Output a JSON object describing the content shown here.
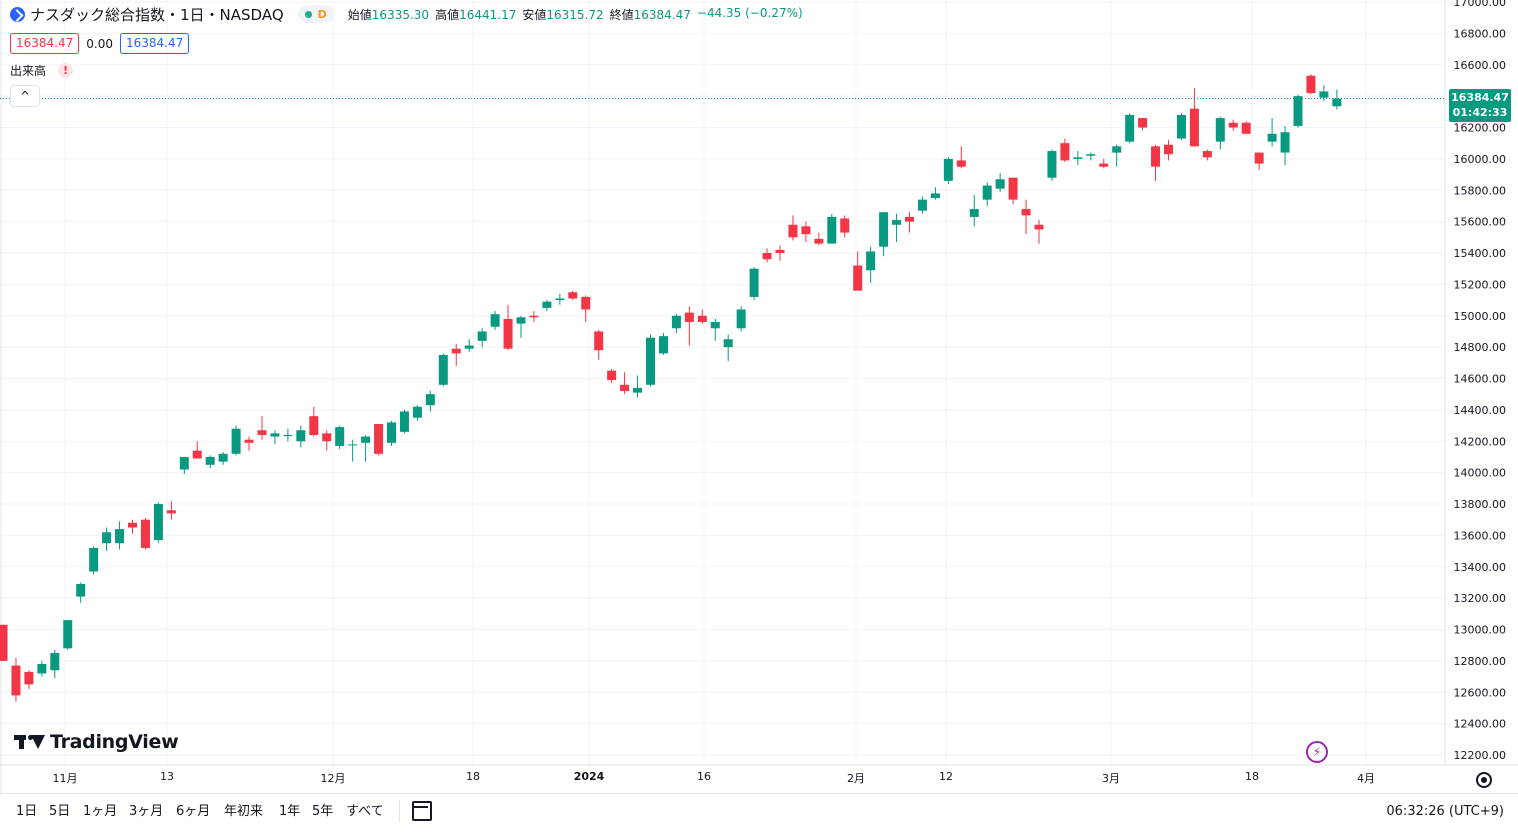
{
  "header": {
    "title": "ナスダック総合指数・1日・NASDAQ",
    "badge": "D",
    "ohlc": {
      "open_label": "始値",
      "open": "16335.30",
      "high_label": "高値",
      "high": "16441.17",
      "low_label": "安値",
      "low": "16315.72",
      "close_label": "終値",
      "close": "16384.47",
      "change": "−44.35 (−0.27%)"
    },
    "bid": "16384.47",
    "spread": "0.00",
    "ask": "16384.47",
    "volume_label": "出来高",
    "volume_warning": "!",
    "collapse": "^"
  },
  "brand": {
    "name": "TradingView"
  },
  "last_price": {
    "value": "16384.47",
    "countdown": "01:42:33"
  },
  "timeframes": [
    "1日",
    "5日",
    "1ヶ月",
    "3ヶ月",
    "6ヶ月",
    "年初来",
    "1年",
    "5年",
    "すべて"
  ],
  "clock": "06:32:26 (UTC+9)",
  "colors": {
    "up": "#089981",
    "down": "#f23645",
    "grid": "#f0f3fa",
    "accent": "#2962ff"
  },
  "icons": {
    "lightning": "⚡",
    "settings": "gear-icon",
    "calendar": "calendar-icon"
  },
  "chart_data": {
    "type": "candlestick",
    "title": "ナスダック総合指数・1日・NASDAQ",
    "y_ticks": [
      "17000.00",
      "16800.00",
      "16600.00",
      "16400.00",
      "16200.00",
      "16000.00",
      "15800.00",
      "15600.00",
      "15400.00",
      "15200.00",
      "15000.00",
      "14800.00",
      "14600.00",
      "14400.00",
      "14200.00",
      "14000.00",
      "13800.00",
      "13600.00",
      "13400.00",
      "13200.00",
      "13000.00",
      "12800.00",
      "12600.00",
      "12400.00",
      "12200.00"
    ],
    "ylim": [
      12100,
      17020
    ],
    "x_ticks": [
      "11月",
      "13",
      "12月",
      "18",
      "2024",
      "16",
      "2月",
      "12",
      "3月",
      "18",
      "4月"
    ],
    "x_tick_bold": "2024",
    "candles": [
      {
        "o": 13030,
        "h": 13030,
        "l": 12800,
        "c": 12800
      },
      {
        "o": 12770,
        "h": 12820,
        "l": 12540,
        "c": 12580
      },
      {
        "o": 12730,
        "h": 12740,
        "l": 12620,
        "c": 12650
      },
      {
        "o": 12720,
        "h": 12800,
        "l": 12700,
        "c": 12780
      },
      {
        "o": 12740,
        "h": 12870,
        "l": 12690,
        "c": 12850
      },
      {
        "o": 12880,
        "h": 13060,
        "l": 12870,
        "c": 13060
      },
      {
        "o": 13210,
        "h": 13300,
        "l": 13170,
        "c": 13290
      },
      {
        "o": 13370,
        "h": 13530,
        "l": 13350,
        "c": 13520
      },
      {
        "o": 13550,
        "h": 13650,
        "l": 13500,
        "c": 13620
      },
      {
        "o": 13550,
        "h": 13690,
        "l": 13510,
        "c": 13640
      },
      {
        "o": 13680,
        "h": 13700,
        "l": 13610,
        "c": 13650
      },
      {
        "o": 13700,
        "h": 13710,
        "l": 13510,
        "c": 13520
      },
      {
        "o": 13570,
        "h": 13810,
        "l": 13550,
        "c": 13800
      },
      {
        "o": 13760,
        "h": 13820,
        "l": 13700,
        "c": 13740
      },
      {
        "o": 14020,
        "h": 14100,
        "l": 13990,
        "c": 14100
      },
      {
        "o": 14140,
        "h": 14200,
        "l": 14090,
        "c": 14090
      },
      {
        "o": 14050,
        "h": 14110,
        "l": 14030,
        "c": 14100
      },
      {
        "o": 14070,
        "h": 14130,
        "l": 14050,
        "c": 14120
      },
      {
        "o": 14120,
        "h": 14300,
        "l": 14110,
        "c": 14280
      },
      {
        "o": 14210,
        "h": 14230,
        "l": 14140,
        "c": 14190
      },
      {
        "o": 14270,
        "h": 14360,
        "l": 14210,
        "c": 14240
      },
      {
        "o": 14230,
        "h": 14270,
        "l": 14180,
        "c": 14250
      },
      {
        "o": 14240,
        "h": 14280,
        "l": 14200,
        "c": 14240
      },
      {
        "o": 14200,
        "h": 14300,
        "l": 14160,
        "c": 14270
      },
      {
        "o": 14360,
        "h": 14420,
        "l": 14230,
        "c": 14240
      },
      {
        "o": 14250,
        "h": 14270,
        "l": 14140,
        "c": 14200
      },
      {
        "o": 14170,
        "h": 14300,
        "l": 14150,
        "c": 14290
      },
      {
        "o": 14180,
        "h": 14210,
        "l": 14070,
        "c": 14180
      },
      {
        "o": 14190,
        "h": 14240,
        "l": 14070,
        "c": 14230
      },
      {
        "o": 14310,
        "h": 14310,
        "l": 14110,
        "c": 14120
      },
      {
        "o": 14190,
        "h": 14330,
        "l": 14170,
        "c": 14320
      },
      {
        "o": 14260,
        "h": 14400,
        "l": 14250,
        "c": 14390
      },
      {
        "o": 14350,
        "h": 14430,
        "l": 14330,
        "c": 14420
      },
      {
        "o": 14430,
        "h": 14520,
        "l": 14390,
        "c": 14500
      },
      {
        "o": 14560,
        "h": 14760,
        "l": 14550,
        "c": 14750
      },
      {
        "o": 14790,
        "h": 14820,
        "l": 14680,
        "c": 14760
      },
      {
        "o": 14790,
        "h": 14850,
        "l": 14770,
        "c": 14810
      },
      {
        "o": 14840,
        "h": 14920,
        "l": 14800,
        "c": 14900
      },
      {
        "o": 14930,
        "h": 15030,
        "l": 14910,
        "c": 15010
      },
      {
        "o": 14980,
        "h": 15070,
        "l": 14780,
        "c": 14790
      },
      {
        "o": 14950,
        "h": 15000,
        "l": 14860,
        "c": 14990
      },
      {
        "o": 15000,
        "h": 15030,
        "l": 14960,
        "c": 14990
      },
      {
        "o": 15050,
        "h": 15100,
        "l": 15030,
        "c": 15090
      },
      {
        "o": 15100,
        "h": 15140,
        "l": 15070,
        "c": 15110
      },
      {
        "o": 15150,
        "h": 15160,
        "l": 15100,
        "c": 15110
      },
      {
        "o": 15120,
        "h": 15130,
        "l": 14960,
        "c": 15040
      },
      {
        "o": 14900,
        "h": 14910,
        "l": 14720,
        "c": 14780
      },
      {
        "o": 14650,
        "h": 14660,
        "l": 14570,
        "c": 14590
      },
      {
        "o": 14560,
        "h": 14640,
        "l": 14500,
        "c": 14520
      },
      {
        "o": 14510,
        "h": 14620,
        "l": 14480,
        "c": 14540
      },
      {
        "o": 14560,
        "h": 14880,
        "l": 14550,
        "c": 14860
      },
      {
        "o": 14760,
        "h": 14890,
        "l": 14750,
        "c": 14870
      },
      {
        "o": 14920,
        "h": 15010,
        "l": 14890,
        "c": 15000
      },
      {
        "o": 15020,
        "h": 15060,
        "l": 14810,
        "c": 14960
      },
      {
        "o": 15000,
        "h": 15040,
        "l": 14950,
        "c": 14960
      },
      {
        "o": 14920,
        "h": 14980,
        "l": 14840,
        "c": 14960
      },
      {
        "o": 14800,
        "h": 14880,
        "l": 14710,
        "c": 14850
      },
      {
        "o": 14920,
        "h": 15060,
        "l": 14900,
        "c": 15040
      },
      {
        "o": 15120,
        "h": 15310,
        "l": 15100,
        "c": 15300
      },
      {
        "o": 15400,
        "h": 15430,
        "l": 15340,
        "c": 15360
      },
      {
        "o": 15420,
        "h": 15450,
        "l": 15350,
        "c": 15400
      },
      {
        "o": 15580,
        "h": 15640,
        "l": 15480,
        "c": 15500
      },
      {
        "o": 15570,
        "h": 15600,
        "l": 15470,
        "c": 15520
      },
      {
        "o": 15490,
        "h": 15530,
        "l": 15450,
        "c": 15460
      },
      {
        "o": 15460,
        "h": 15650,
        "l": 15460,
        "c": 15630
      },
      {
        "o": 15620,
        "h": 15640,
        "l": 15500,
        "c": 15530
      },
      {
        "o": 15320,
        "h": 15410,
        "l": 15160,
        "c": 15160
      },
      {
        "o": 15290,
        "h": 15440,
        "l": 15210,
        "c": 15410
      },
      {
        "o": 15440,
        "h": 15660,
        "l": 15380,
        "c": 15660
      },
      {
        "o": 15580,
        "h": 15650,
        "l": 15470,
        "c": 15610
      },
      {
        "o": 15630,
        "h": 15660,
        "l": 15530,
        "c": 15600
      },
      {
        "o": 15670,
        "h": 15760,
        "l": 15650,
        "c": 15740
      },
      {
        "o": 15750,
        "h": 15820,
        "l": 15740,
        "c": 15780
      },
      {
        "o": 15860,
        "h": 16010,
        "l": 15840,
        "c": 16000
      },
      {
        "o": 15990,
        "h": 16080,
        "l": 15940,
        "c": 15950
      },
      {
        "o": 15630,
        "h": 15770,
        "l": 15570,
        "c": 15680
      },
      {
        "o": 15740,
        "h": 15850,
        "l": 15700,
        "c": 15830
      },
      {
        "o": 15810,
        "h": 15910,
        "l": 15790,
        "c": 15870
      },
      {
        "o": 15880,
        "h": 15880,
        "l": 15710,
        "c": 15740
      },
      {
        "o": 15680,
        "h": 15740,
        "l": 15520,
        "c": 15640
      },
      {
        "o": 15580,
        "h": 15610,
        "l": 15460,
        "c": 15550
      },
      {
        "o": 15880,
        "h": 16060,
        "l": 15860,
        "c": 16050
      },
      {
        "o": 16100,
        "h": 16130,
        "l": 15980,
        "c": 15990
      },
      {
        "o": 16000,
        "h": 16050,
        "l": 15960,
        "c": 16010
      },
      {
        "o": 16020,
        "h": 16040,
        "l": 15990,
        "c": 16030
      },
      {
        "o": 15970,
        "h": 16000,
        "l": 15940,
        "c": 15950
      },
      {
        "o": 16040,
        "h": 16090,
        "l": 15950,
        "c": 16080
      },
      {
        "o": 16110,
        "h": 16290,
        "l": 16100,
        "c": 16280
      },
      {
        "o": 16260,
        "h": 16260,
        "l": 16180,
        "c": 16200
      },
      {
        "o": 16080,
        "h": 16090,
        "l": 15860,
        "c": 15950
      },
      {
        "o": 16090,
        "h": 16120,
        "l": 15990,
        "c": 16030
      },
      {
        "o": 16130,
        "h": 16290,
        "l": 16120,
        "c": 16280
      },
      {
        "o": 16320,
        "h": 16450,
        "l": 16080,
        "c": 16080
      },
      {
        "o": 16050,
        "h": 16060,
        "l": 15990,
        "c": 16010
      },
      {
        "o": 16110,
        "h": 16270,
        "l": 16060,
        "c": 16260
      },
      {
        "o": 16230,
        "h": 16250,
        "l": 16180,
        "c": 16200
      },
      {
        "o": 16230,
        "h": 16240,
        "l": 16160,
        "c": 16160
      },
      {
        "o": 16040,
        "h": 16040,
        "l": 15930,
        "c": 15970
      },
      {
        "o": 16110,
        "h": 16260,
        "l": 16080,
        "c": 16160
      },
      {
        "o": 16040,
        "h": 16210,
        "l": 15960,
        "c": 16170
      },
      {
        "o": 16210,
        "h": 16410,
        "l": 16200,
        "c": 16400
      },
      {
        "o": 16530,
        "h": 16540,
        "l": 16410,
        "c": 16420
      },
      {
        "o": 16390,
        "h": 16470,
        "l": 16370,
        "c": 16430
      },
      {
        "o": 16335.3,
        "h": 16441.17,
        "l": 16315.72,
        "c": 16384.47
      }
    ]
  }
}
